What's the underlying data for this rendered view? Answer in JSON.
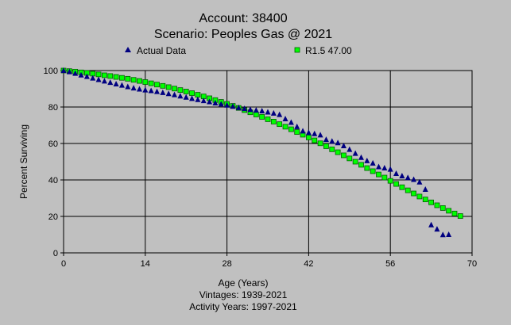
{
  "chart_data": {
    "type": "scatter",
    "title": "Account: 38400",
    "subtitle": "Scenario: Peoples Gas @ 2021",
    "xlabel": "Age (Years)",
    "ylabel": "Percent Surviving",
    "xlim": [
      0,
      70
    ],
    "ylim": [
      0,
      100
    ],
    "xticks": [
      "0",
      "14",
      "28",
      "42",
      "56",
      "70"
    ],
    "yticks": [
      "0",
      "20",
      "40",
      "60",
      "80",
      "100"
    ],
    "grid": true,
    "legend_placement": "top",
    "notes": [
      "Vintages: 1939-2021",
      "Activity Years: 1997-2021"
    ],
    "series": [
      {
        "name": "Actual Data",
        "marker": "triangle",
        "color": "#000080",
        "x": [
          0,
          1,
          2,
          3,
          4,
          5,
          6,
          7,
          8,
          9,
          10,
          11,
          12,
          13,
          14,
          15,
          16,
          17,
          18,
          19,
          20,
          21,
          22,
          23,
          24,
          25,
          26,
          27,
          28,
          29,
          30,
          31,
          32,
          33,
          34,
          35,
          36,
          37,
          38,
          39,
          40,
          41,
          42,
          43,
          44,
          45,
          46,
          47,
          48,
          49,
          50,
          51,
          52,
          53,
          54,
          55,
          56,
          57,
          58,
          59,
          60,
          61,
          62,
          63,
          64,
          65,
          66
        ],
        "y": [
          100,
          99.3,
          98.4,
          97.5,
          96.7,
          95.8,
          95.0,
          94.2,
          93.4,
          92.6,
          91.9,
          91.1,
          90.4,
          89.8,
          89.3,
          88.9,
          88.4,
          87.9,
          87.3,
          86.7,
          86.0,
          85.3,
          84.6,
          84.0,
          83.4,
          82.8,
          82.2,
          81.6,
          81.0,
          80.3,
          79.6,
          79.1,
          78.6,
          78.2,
          77.8,
          77.2,
          76.6,
          75.8,
          73.5,
          71.5,
          69.2,
          66.8,
          65.9,
          65.3,
          64.6,
          62.1,
          61.2,
          60.3,
          58.7,
          56.7,
          54.5,
          52.3,
          50.5,
          49.2,
          47.2,
          46.5,
          45.8,
          43.5,
          42.2,
          41.2,
          40.2,
          38.8,
          34.8,
          15.3,
          13.0,
          9.9,
          10.0
        ]
      },
      {
        "name": "R1.5 47.00",
        "marker": "square",
        "color": "#00ff00",
        "x": [
          0,
          1,
          2,
          3,
          4,
          5,
          6,
          7,
          8,
          9,
          10,
          11,
          12,
          13,
          14,
          15,
          16,
          17,
          18,
          19,
          20,
          21,
          22,
          23,
          24,
          25,
          26,
          27,
          28,
          29,
          30,
          31,
          32,
          33,
          34,
          35,
          36,
          37,
          38,
          39,
          40,
          41,
          42,
          43,
          44,
          45,
          46,
          47,
          48,
          49,
          50,
          51,
          52,
          53,
          54,
          55,
          56,
          57,
          58,
          59,
          60,
          61,
          62,
          63,
          64,
          65,
          66,
          67,
          68
        ],
        "y": [
          100,
          99.7,
          99.4,
          99.0,
          98.7,
          98.3,
          97.9,
          97.4,
          97.0,
          96.5,
          96.0,
          95.5,
          94.9,
          94.3,
          93.7,
          93.0,
          92.3,
          91.6,
          90.9,
          90.1,
          89.3,
          88.5,
          87.6,
          86.7,
          85.8,
          84.8,
          83.8,
          82.8,
          81.7,
          80.6,
          79.5,
          78.3,
          77.1,
          75.9,
          74.6,
          73.3,
          72.0,
          70.6,
          69.2,
          67.8,
          66.3,
          64.8,
          63.3,
          61.7,
          60.1,
          58.5,
          56.8,
          55.2,
          53.5,
          51.8,
          50.0,
          48.3,
          46.5,
          44.8,
          43.0,
          41.3,
          39.5,
          37.8,
          36.0,
          34.3,
          32.6,
          30.9,
          29.3,
          27.7,
          26.1,
          24.6,
          23.1,
          21.6,
          20.2
        ]
      }
    ]
  }
}
